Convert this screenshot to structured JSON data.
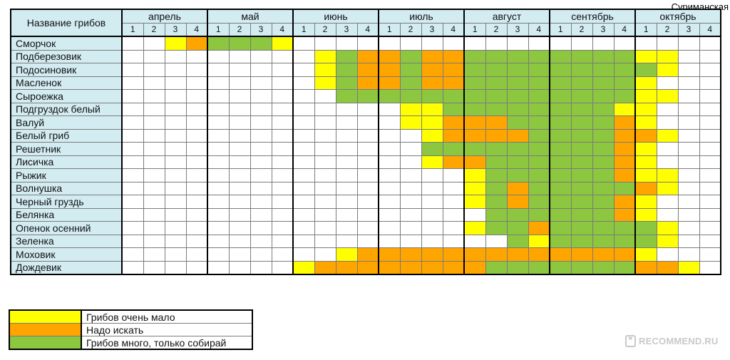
{
  "author": "Суриманская",
  "watermark": "RECOMMEND.RU",
  "watermark_icon": "quote-icon",
  "chart_data": {
    "type": "table",
    "header_name": "Название грибов",
    "months": [
      "апрель",
      "май",
      "июнь",
      "июль",
      "август",
      "сентябрь",
      "октябрь"
    ],
    "weeks": [
      "1",
      "2",
      "3",
      "4"
    ],
    "colors": {
      "0": "#ffffff",
      "1": "#ffff00",
      "2": "#ffa500",
      "3": "#8dc63f"
    },
    "rows": [
      {
        "name": "Сморчок",
        "levels": [
          0,
          0,
          1,
          2,
          3,
          3,
          3,
          1,
          0,
          0,
          0,
          0,
          0,
          0,
          0,
          0,
          0,
          0,
          0,
          0,
          0,
          0,
          0,
          0,
          0,
          0,
          0,
          0
        ]
      },
      {
        "name": "Подберезовик",
        "levels": [
          0,
          0,
          0,
          0,
          0,
          0,
          0,
          0,
          0,
          1,
          3,
          2,
          2,
          3,
          2,
          2,
          3,
          3,
          3,
          3,
          3,
          3,
          3,
          3,
          1,
          1,
          0,
          0
        ]
      },
      {
        "name": "Подосиновик",
        "levels": [
          0,
          0,
          0,
          0,
          0,
          0,
          0,
          0,
          0,
          1,
          3,
          2,
          2,
          3,
          2,
          2,
          3,
          3,
          3,
          3,
          3,
          3,
          3,
          3,
          3,
          1,
          0,
          0
        ]
      },
      {
        "name": "Масленок",
        "levels": [
          0,
          0,
          0,
          0,
          0,
          0,
          0,
          0,
          0,
          1,
          3,
          2,
          2,
          3,
          2,
          2,
          3,
          3,
          3,
          3,
          3,
          3,
          3,
          3,
          1,
          0,
          0,
          0
        ]
      },
      {
        "name": "Сыроежка",
        "levels": [
          0,
          0,
          0,
          0,
          0,
          0,
          0,
          0,
          0,
          0,
          3,
          3,
          3,
          3,
          3,
          3,
          3,
          3,
          3,
          3,
          3,
          3,
          3,
          3,
          1,
          1,
          0,
          0
        ]
      },
      {
        "name": "Подгруздок белый",
        "levels": [
          0,
          0,
          0,
          0,
          0,
          0,
          0,
          0,
          0,
          0,
          0,
          0,
          0,
          1,
          1,
          3,
          3,
          3,
          3,
          3,
          3,
          3,
          3,
          1,
          1,
          0,
          0,
          0
        ]
      },
      {
        "name": "Валуй",
        "levels": [
          0,
          0,
          0,
          0,
          0,
          0,
          0,
          0,
          0,
          0,
          0,
          0,
          0,
          1,
          1,
          2,
          2,
          2,
          3,
          3,
          3,
          3,
          3,
          2,
          1,
          0,
          0,
          0
        ]
      },
      {
        "name": "Белый гриб",
        "levels": [
          0,
          0,
          0,
          0,
          0,
          0,
          0,
          0,
          0,
          0,
          0,
          0,
          0,
          0,
          1,
          2,
          2,
          2,
          2,
          3,
          3,
          3,
          3,
          2,
          2,
          1,
          0,
          0
        ]
      },
      {
        "name": "Решетник",
        "levels": [
          0,
          0,
          0,
          0,
          0,
          0,
          0,
          0,
          0,
          0,
          0,
          0,
          0,
          0,
          3,
          3,
          3,
          3,
          3,
          3,
          3,
          3,
          3,
          2,
          1,
          0,
          0,
          0
        ]
      },
      {
        "name": "Лисичка",
        "levels": [
          0,
          0,
          0,
          0,
          0,
          0,
          0,
          0,
          0,
          0,
          0,
          0,
          0,
          0,
          1,
          2,
          2,
          3,
          3,
          3,
          3,
          3,
          3,
          2,
          1,
          0,
          0,
          0
        ]
      },
      {
        "name": "Рыжик",
        "levels": [
          0,
          0,
          0,
          0,
          0,
          0,
          0,
          0,
          0,
          0,
          0,
          0,
          0,
          0,
          0,
          0,
          1,
          3,
          3,
          3,
          3,
          3,
          3,
          2,
          1,
          1,
          0,
          0
        ]
      },
      {
        "name": "Волнушка",
        "levels": [
          0,
          0,
          0,
          0,
          0,
          0,
          0,
          0,
          0,
          0,
          0,
          0,
          0,
          0,
          0,
          0,
          1,
          3,
          2,
          3,
          3,
          3,
          3,
          3,
          2,
          1,
          0,
          0
        ]
      },
      {
        "name": "Черный груздь",
        "levels": [
          0,
          0,
          0,
          0,
          0,
          0,
          0,
          0,
          0,
          0,
          0,
          0,
          0,
          0,
          0,
          0,
          1,
          3,
          2,
          3,
          3,
          3,
          3,
          2,
          1,
          0,
          0,
          0
        ]
      },
      {
        "name": "Белянка",
        "levels": [
          0,
          0,
          0,
          0,
          0,
          0,
          0,
          0,
          0,
          0,
          0,
          0,
          0,
          0,
          0,
          0,
          0,
          3,
          3,
          3,
          3,
          3,
          3,
          2,
          1,
          0,
          0,
          0
        ]
      },
      {
        "name": "Опенок осенний",
        "levels": [
          0,
          0,
          0,
          0,
          0,
          0,
          0,
          0,
          0,
          0,
          0,
          0,
          0,
          0,
          0,
          0,
          1,
          3,
          3,
          2,
          3,
          3,
          3,
          3,
          3,
          1,
          0,
          0
        ]
      },
      {
        "name": "Зеленка",
        "levels": [
          0,
          0,
          0,
          0,
          0,
          0,
          0,
          0,
          0,
          0,
          0,
          0,
          0,
          0,
          0,
          0,
          0,
          0,
          3,
          1,
          3,
          3,
          3,
          3,
          3,
          1,
          0,
          0
        ]
      },
      {
        "name": "Моховик",
        "levels": [
          0,
          0,
          0,
          0,
          0,
          0,
          0,
          0,
          0,
          0,
          1,
          2,
          2,
          2,
          2,
          2,
          2,
          2,
          2,
          2,
          2,
          2,
          2,
          2,
          1,
          0,
          0,
          0
        ]
      },
      {
        "name": "Дождевик",
        "levels": [
          0,
          0,
          0,
          0,
          0,
          0,
          0,
          0,
          1,
          2,
          2,
          2,
          2,
          2,
          2,
          2,
          2,
          3,
          3,
          3,
          3,
          3,
          3,
          3,
          2,
          2,
          1,
          0
        ]
      }
    ],
    "legend": [
      {
        "color": "#ffff00",
        "label": "Грибов очень мало"
      },
      {
        "color": "#ffa500",
        "label": "Надо искать"
      },
      {
        "color": "#8dc63f",
        "label": "Грибов много, только собирай"
      }
    ]
  }
}
